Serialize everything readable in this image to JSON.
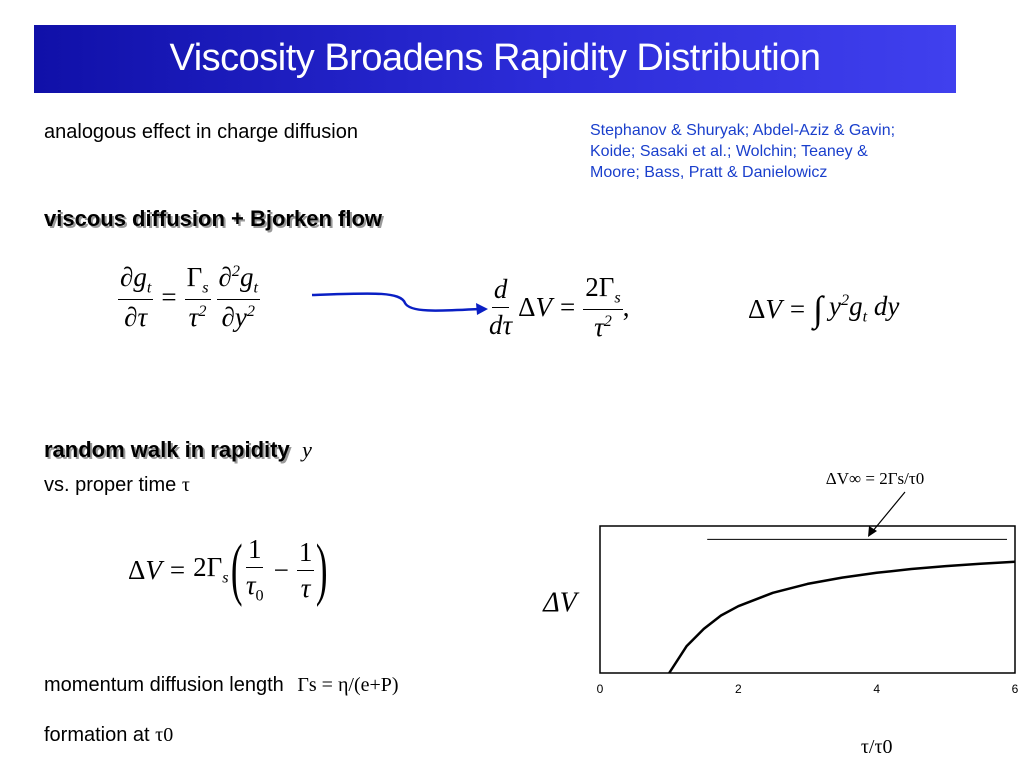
{
  "title": "Viscosity Broadens Rapidity Distribution",
  "intro": "analogous effect in charge diffusion",
  "references": {
    "line1": "Stephanov & Shuryak; Abdel-Aziz & Gavin;",
    "line2": "Koide; Sasaki et al.; Wolchin; Teaney &",
    "line3": "Moore; Bass, Pratt & Danielowicz"
  },
  "heading1": "viscous diffusion + Bjorken flow",
  "heading2": "random walk in rapidity",
  "heading2_symbol": "y",
  "proper_time_label": "vs. proper time",
  "proper_time_symbol": "τ",
  "momentum_label": "momentum diffusion length",
  "momentum_formula": "Γs = η/(e+P)",
  "formation_label": "formation at",
  "formation_symbol": "τ0",
  "chart_data": {
    "type": "line",
    "title": "",
    "xlabel": "τ/τ0",
    "ylabel": "ΔV",
    "xlim": [
      0,
      6
    ],
    "x_ticks": [
      "0",
      "2",
      "4",
      "6"
    ],
    "asymptote_label": "ΔV∞ = 2Γs/τ0",
    "grid": false,
    "series": [
      {
        "x": [
          1.0,
          1.25,
          1.5,
          1.75,
          2.0,
          2.5,
          3.0,
          3.5,
          4.0,
          4.5,
          5.0,
          5.5,
          6.0
        ],
        "y": [
          0.0,
          0.2,
          0.33,
          0.43,
          0.5,
          0.6,
          0.667,
          0.714,
          0.75,
          0.778,
          0.8,
          0.818,
          0.833
        ]
      }
    ],
    "asymptote_y": 1.0
  }
}
